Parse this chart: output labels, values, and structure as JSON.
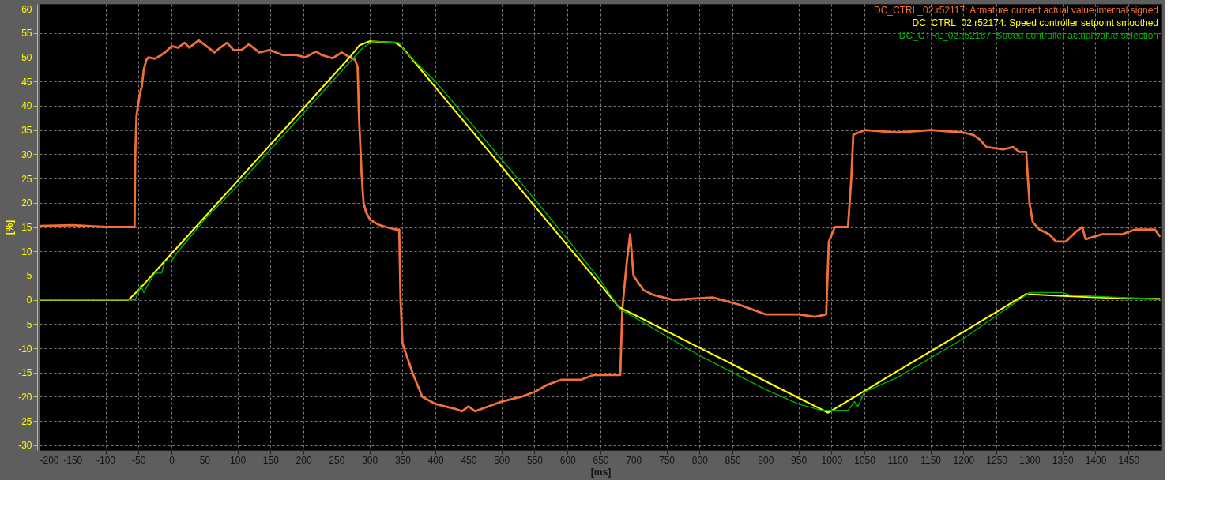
{
  "chart_data": {
    "type": "line",
    "xlabel": "[ms]",
    "ylabel": "[%]",
    "xlim": [
      -200,
      1500
    ],
    "ylim": [
      -31,
      61
    ],
    "xticks": [
      -200,
      -150,
      -100,
      -50,
      0,
      50,
      100,
      150,
      200,
      250,
      300,
      350,
      400,
      450,
      500,
      550,
      600,
      650,
      700,
      750,
      800,
      850,
      900,
      950,
      1000,
      1050,
      1100,
      1150,
      1200,
      1250,
      1300,
      1350,
      1400,
      1450
    ],
    "yticks": [
      -30,
      -25,
      -20,
      -15,
      -10,
      -5,
      0,
      5,
      10,
      15,
      20,
      25,
      30,
      35,
      40,
      45,
      50,
      55,
      60
    ],
    "grid": true,
    "legend": "top right",
    "line_style": "solid",
    "marker": "none",
    "series": [
      {
        "name": "DC_CTRL_02.r52117: Armature current actual value internal signed",
        "color": "#f07038",
        "x": [
          -200,
          -150,
          -100,
          -56,
          -55,
          -53,
          -48,
          -45,
          -42,
          -38,
          -35,
          -25,
          -15,
          -10,
          0,
          10,
          20,
          27,
          41,
          51,
          65,
          74,
          84,
          94,
          106,
          117,
          133,
          149,
          168,
          188,
          203,
          219,
          227,
          244,
          258,
          270,
          278,
          282,
          284,
          288,
          291,
          295,
          301,
          313,
          325,
          340,
          345,
          347,
          350,
          365,
          380,
          400,
          430,
          440,
          450,
          460,
          480,
          500,
          530,
          550,
          570,
          590,
          620,
          640,
          680,
          683,
          690,
          695,
          700,
          715,
          730,
          760,
          820,
          860,
          880,
          900,
          950,
          975,
          992,
          996,
          1005,
          1025,
          1030,
          1033,
          1050,
          1100,
          1150,
          1200,
          1215,
          1225,
          1235,
          1260,
          1275,
          1285,
          1295,
          1300,
          1305,
          1315,
          1330,
          1340,
          1355,
          1370,
          1380,
          1385,
          1410,
          1440,
          1460,
          1490,
          1498
        ],
        "values": [
          15.2,
          15.4,
          15,
          15,
          29.5,
          38,
          42.5,
          44,
          47.5,
          49.5,
          50,
          49.7,
          50.5,
          51,
          52.3,
          52,
          53,
          52,
          53.5,
          52.5,
          51,
          52,
          53,
          51.5,
          51.5,
          52.7,
          51,
          51.5,
          50.5,
          50.5,
          50,
          51.2,
          50.5,
          49.8,
          51,
          50,
          49.5,
          48,
          38,
          26,
          20,
          18,
          16.5,
          15.5,
          15,
          14.5,
          14.5,
          0,
          -9,
          -15,
          -20,
          -21.5,
          -22.5,
          -23,
          -22,
          -23,
          -22,
          -21,
          -20,
          -19,
          -17.5,
          -16.5,
          -16.5,
          -15.5,
          -15.5,
          -2,
          8,
          13.5,
          5,
          2,
          1,
          0,
          0.5,
          -1,
          -2,
          -3,
          -3,
          -3.5,
          -3,
          12,
          15,
          15,
          25,
          34,
          35,
          34.5,
          35,
          34.5,
          34,
          33,
          31.5,
          31,
          31.5,
          30.5,
          30.5,
          20,
          16,
          14.5,
          13.5,
          12,
          12,
          14,
          15,
          12.5,
          13.5,
          13.5,
          14.5,
          14.5,
          13
        ]
      },
      {
        "name": "DC_CTRL_02.r52174: Speed controller setpoint smoothed",
        "color": "#ffff00",
        "x": [
          -200,
          -65,
          -50,
          0,
          100,
          200,
          270,
          285,
          300,
          340,
          350,
          400,
          500,
          600,
          650,
          678,
          700,
          800,
          850,
          900,
          995,
          1100,
          1200,
          1295,
          1320,
          1350,
          1400,
          1450,
          1498
        ],
        "values": [
          0,
          0,
          2,
          9.5,
          24.5,
          39.5,
          50,
          52.5,
          53.3,
          53,
          52,
          43.8,
          27.5,
          11.2,
          3.1,
          -1.5,
          -3,
          -9.9,
          -13.3,
          -16.8,
          -23.3,
          -14.7,
          -6.6,
          1.2,
          1.0,
          0.8,
          0.5,
          0.3,
          0.2
        ]
      },
      {
        "name": "DC_CTRL_02.r52167: Speed controller actual value selection",
        "color": "#00b000",
        "x": [
          -200,
          -55,
          -50,
          -47,
          -42,
          -30,
          -25,
          -15,
          -10,
          0,
          10,
          50,
          100,
          200,
          270,
          290,
          305,
          345,
          355,
          400,
          500,
          600,
          650,
          680,
          700,
          800,
          900,
          950,
          985,
          1025,
          1035,
          1040,
          1050,
          1100,
          1200,
          1290,
          1300,
          1350,
          1360,
          1400,
          1450,
          1498
        ],
        "values": [
          0,
          0,
          1.5,
          3,
          1.5,
          4.5,
          5.5,
          5.5,
          8,
          8,
          10,
          16.5,
          23.5,
          38.5,
          49,
          52,
          53.3,
          53,
          51,
          45,
          29,
          12.5,
          4,
          -2,
          -3.5,
          -11.5,
          -18.5,
          -21.5,
          -22.8,
          -22.8,
          -21,
          -22,
          -19,
          -16,
          -8,
          0.5,
          1.5,
          1.5,
          1.0,
          0.7,
          0.4,
          0.2
        ]
      }
    ]
  }
}
